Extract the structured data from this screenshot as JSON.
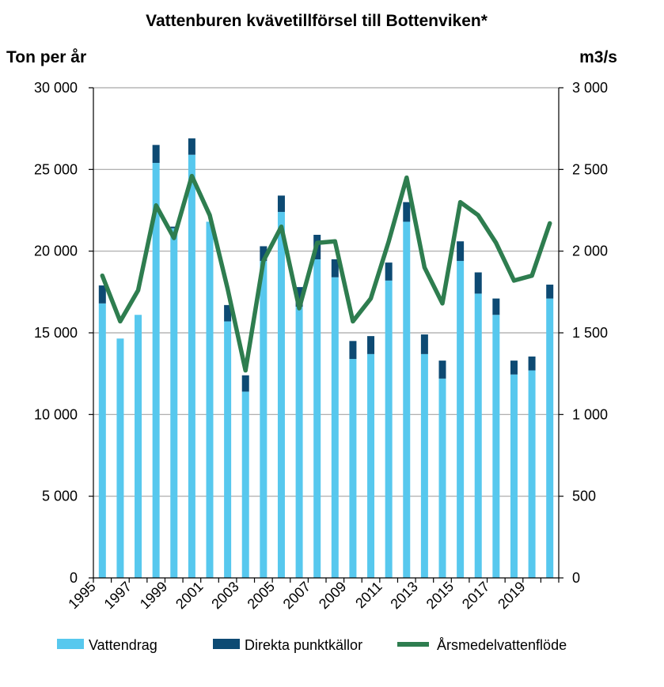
{
  "chart_data": {
    "type": "bar",
    "title": "Vattenburen kvävetillförsel till Bottenviken*",
    "ylabel_left": "Ton per år",
    "ylabel_right": "m3/s",
    "ylim_left": [
      0,
      30000
    ],
    "ylim_right": [
      0,
      3000
    ],
    "yticks_left": [
      "0",
      "5 000",
      "10 000",
      "15 000",
      "20 000",
      "25 000",
      "30 000"
    ],
    "yticks_right": [
      "0",
      "500",
      "1 000",
      "1 500",
      "2 000",
      "2 500",
      "3 000"
    ],
    "years": [
      1995,
      1996,
      1997,
      1998,
      1999,
      2000,
      2001,
      2002,
      2003,
      2004,
      2005,
      2006,
      2007,
      2008,
      2009,
      2010,
      2011,
      2012,
      2013,
      2014,
      2015,
      2016,
      2017,
      2018,
      2019,
      2020
    ],
    "xtick_labels": [
      "1995",
      "1997",
      "1999",
      "2001",
      "2003",
      "2005",
      "2007",
      "2009",
      "2011",
      "2013",
      "2015",
      "2017",
      "2019"
    ],
    "grid": true,
    "legend_position": "bottom",
    "series": [
      {
        "name": "Vattendrag",
        "kind": "stacked-bar",
        "axis": "left",
        "color": "#57c8ee",
        "values": [
          16800,
          14650,
          16100,
          25400,
          21400,
          25900,
          21800,
          15700,
          11400,
          19400,
          22400,
          16600,
          19500,
          18400,
          13400,
          13700,
          18200,
          21800,
          13700,
          12200,
          19400,
          17400,
          16100,
          12450,
          12700,
          17100
        ]
      },
      {
        "name": "Direkta punktkällor",
        "kind": "stacked-bar",
        "axis": "left",
        "color": "#0d4a73",
        "values": [
          1100,
          0,
          0,
          1100,
          100,
          1000,
          0,
          1000,
          1000,
          900,
          1000,
          1200,
          1500,
          1100,
          1100,
          1100,
          1100,
          1200,
          1200,
          1100,
          1200,
          1300,
          1000,
          850,
          850,
          850
        ]
      },
      {
        "name": "Årsmedelvattenflöde",
        "kind": "line",
        "axis": "right",
        "color": "#2e7d4f",
        "values": [
          1850,
          1570,
          1760,
          2280,
          2080,
          2460,
          2220,
          1770,
          1270,
          1940,
          2150,
          1650,
          2050,
          2060,
          1570,
          1710,
          2060,
          2450,
          1900,
          1680,
          2300,
          2220,
          2050,
          1820,
          1850,
          2170
        ]
      }
    ]
  }
}
